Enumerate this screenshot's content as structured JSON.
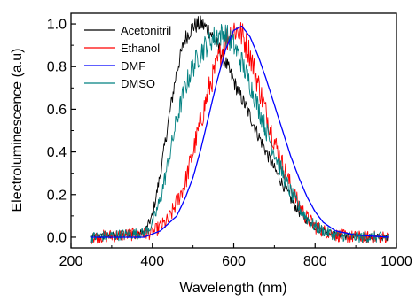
{
  "chart_data": {
    "type": "line",
    "xlabel": "Wavelength (nm)",
    "ylabel": "Electroluminescence (a.u)",
    "xlim": [
      200,
      1000
    ],
    "ylim": [
      -0.05,
      1.05
    ],
    "xticks": [
      "200",
      "400",
      "600",
      "800",
      "1000"
    ],
    "yticks": [
      "0.0",
      "0.2",
      "0.4",
      "0.6",
      "0.8",
      "1.0"
    ],
    "legend_position": "top-left",
    "grid": false,
    "x_range_measured": [
      250,
      980
    ],
    "series": [
      {
        "name": "Acetonitril",
        "color": "#000000",
        "noise": 0.04,
        "x": [
          250,
          380,
          400,
          420,
          440,
          460,
          480,
          500,
          520,
          540,
          560,
          580,
          600,
          620,
          640,
          660,
          680,
          700,
          720,
          740,
          760,
          780,
          800,
          820,
          850,
          900,
          980
        ],
        "y": [
          0.0,
          0.02,
          0.1,
          0.3,
          0.55,
          0.78,
          0.93,
          0.99,
          1.0,
          0.97,
          0.9,
          0.82,
          0.73,
          0.65,
          0.57,
          0.48,
          0.4,
          0.32,
          0.25,
          0.18,
          0.12,
          0.08,
          0.05,
          0.03,
          0.01,
          0.0,
          0.0
        ]
      },
      {
        "name": "Ethanol",
        "color": "#ff0000",
        "noise": 0.07,
        "x": [
          250,
          400,
          440,
          480,
          500,
          520,
          540,
          560,
          580,
          600,
          620,
          640,
          660,
          680,
          700,
          720,
          740,
          760,
          780,
          800,
          820,
          850,
          900,
          980
        ],
        "y": [
          0.0,
          0.02,
          0.08,
          0.25,
          0.4,
          0.55,
          0.7,
          0.82,
          0.92,
          0.98,
          0.95,
          0.86,
          0.72,
          0.58,
          0.45,
          0.34,
          0.24,
          0.15,
          0.09,
          0.05,
          0.03,
          0.01,
          0.0,
          0.0
        ]
      },
      {
        "name": "DMF",
        "color": "#0000ff",
        "noise": 0.0,
        "x": [
          250,
          380,
          420,
          460,
          480,
          500,
          520,
          540,
          560,
          580,
          600,
          620,
          640,
          660,
          680,
          700,
          720,
          740,
          760,
          780,
          800,
          820,
          850,
          900,
          980
        ],
        "y": [
          0.0,
          0.0,
          0.03,
          0.1,
          0.18,
          0.28,
          0.42,
          0.58,
          0.74,
          0.88,
          0.97,
          0.99,
          0.94,
          0.85,
          0.74,
          0.62,
          0.5,
          0.38,
          0.28,
          0.19,
          0.12,
          0.07,
          0.03,
          0.01,
          0.0
        ]
      },
      {
        "name": "DMSO",
        "color": "#008080",
        "noise": 0.06,
        "x": [
          250,
          380,
          400,
          420,
          440,
          460,
          480,
          500,
          520,
          540,
          560,
          580,
          600,
          620,
          640,
          660,
          680,
          700,
          720,
          740,
          760,
          780,
          800,
          820,
          850,
          900,
          980
        ],
        "y": [
          0.0,
          0.02,
          0.06,
          0.18,
          0.36,
          0.55,
          0.7,
          0.8,
          0.87,
          0.92,
          0.95,
          0.95,
          0.9,
          0.82,
          0.72,
          0.61,
          0.5,
          0.4,
          0.3,
          0.21,
          0.14,
          0.09,
          0.05,
          0.03,
          0.01,
          0.0,
          0.0
        ]
      }
    ]
  }
}
